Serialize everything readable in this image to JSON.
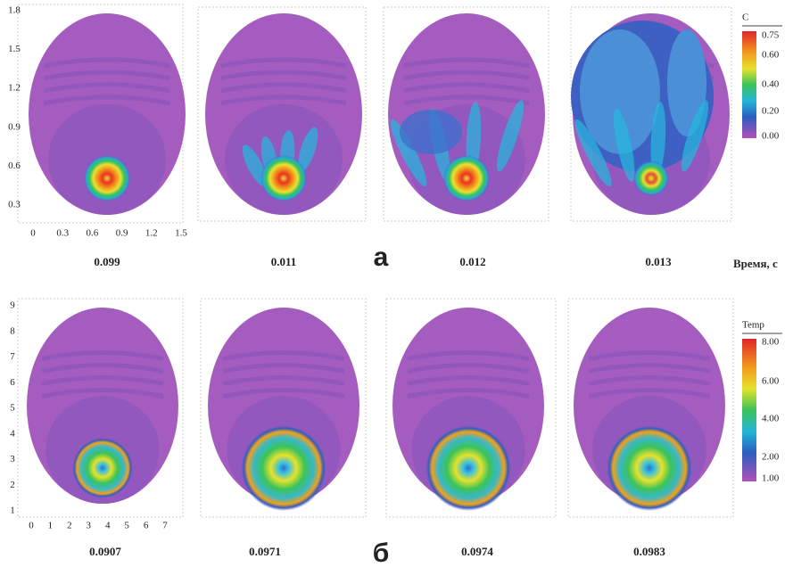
{
  "panel_a": {
    "label": "а",
    "y_ticks": [
      "1.8",
      "1.5",
      "1.2",
      "0.9",
      "0.6",
      "0.3"
    ],
    "x_ticks": [
      "0",
      "0.3",
      "0.6",
      "0.9",
      "1.2",
      "1.5"
    ],
    "times": [
      "0.099",
      "0.011",
      "0.012",
      "0.013"
    ],
    "time_axis_label": "Время, с",
    "colorbar": {
      "title": "C",
      "labels": [
        "0.75",
        "0.60",
        "0.40",
        "0.20",
        "0.00"
      ]
    }
  },
  "panel_b": {
    "label": "б",
    "y_ticks": [
      "9",
      "8",
      "7",
      "6",
      "5",
      "4",
      "3",
      "2",
      "1"
    ],
    "x_ticks": [
      "0",
      "1",
      "2",
      "3",
      "4",
      "5",
      "6",
      "7"
    ],
    "times": [
      "0.0907",
      "0.0971",
      "0.0974",
      "0.0983"
    ],
    "colorbar": {
      "title": "Temp",
      "labels": [
        "8.00",
        "6.00",
        "4.00",
        "2.00",
        "1.00"
      ]
    }
  }
}
